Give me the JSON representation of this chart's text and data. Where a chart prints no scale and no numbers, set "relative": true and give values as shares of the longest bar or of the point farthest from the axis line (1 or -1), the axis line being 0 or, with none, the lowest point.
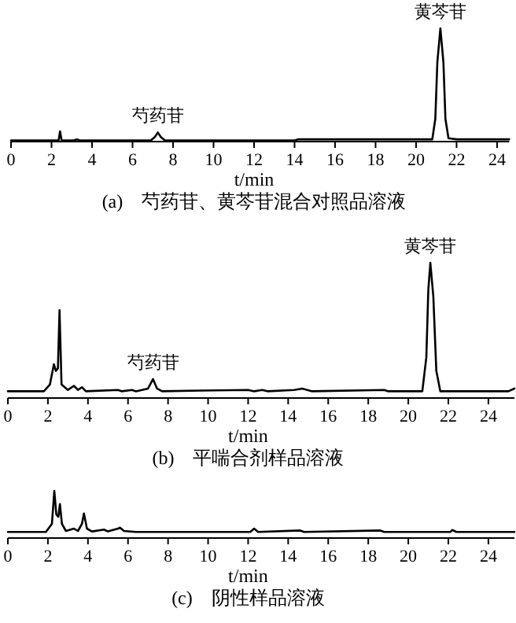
{
  "chart_data": [
    {
      "type": "line",
      "relative": true,
      "title": "(a)　芍药苷、黄芩苷混合对照品溶液",
      "xlabel": "t/min",
      "xlim": [
        0,
        24.6
      ],
      "xticks": [
        0,
        2,
        4,
        6,
        8,
        10,
        12,
        14,
        16,
        18,
        20,
        22,
        24
      ],
      "tick_labels": "x",
      "grid": false,
      "marker": "none",
      "line_style": "solid",
      "annotations": [
        {
          "text": "芍药苷",
          "x": 7.25,
          "y": 0.08
        },
        {
          "text": "黄芩苷",
          "x": 21.2,
          "y": 1
        }
      ],
      "series": [
        {
          "color": "#000000",
          "x": [
            0,
            2.2,
            2.35,
            2.42,
            2.5,
            3.1,
            3.25,
            3.4,
            6.9,
            7.1,
            7.25,
            7.4,
            7.6,
            14.0,
            14.2,
            20.8,
            20.95,
            21.05,
            21.2,
            21.35,
            21.45,
            21.6,
            22,
            24.6
          ],
          "values": [
            0.01,
            0.01,
            0.01,
            0.09,
            0.01,
            0.01,
            0.02,
            0.01,
            0.01,
            0.04,
            0.08,
            0.04,
            0.01,
            0.01,
            0.02,
            0.02,
            0.2,
            0.7,
            1,
            0.7,
            0.2,
            0.03,
            0.02,
            0.02
          ]
        }
      ]
    },
    {
      "type": "line",
      "relative": true,
      "title": "(b)　平喘合剂样品溶液",
      "xlabel": "t/min",
      "xlim": [
        0,
        25.3
      ],
      "xticks": [
        0,
        2,
        4,
        6,
        8,
        10,
        12,
        14,
        16,
        18,
        20,
        22,
        24
      ],
      "tick_labels": "x",
      "grid": false,
      "marker": "none",
      "line_style": "solid",
      "annotations": [
        {
          "text": "芍药苷",
          "x": 7.25,
          "y": 0.14
        },
        {
          "text": "黄芩苷",
          "x": 21.1,
          "y": 1
        }
      ],
      "series": [
        {
          "color": "#000000",
          "x": [
            0,
            1.8,
            2.1,
            2.3,
            2.4,
            2.5,
            2.58,
            2.68,
            3.0,
            3.3,
            3.5,
            3.7,
            3.9,
            5.5,
            5.7,
            6.2,
            6.4,
            7.0,
            7.25,
            7.45,
            7.7,
            9.7,
            12.0,
            12.3,
            12.7,
            13,
            14.3,
            14.7,
            15.2,
            18.8,
            19,
            20.7,
            20.9,
            21.0,
            21.1,
            21.25,
            21.4,
            21.6,
            25,
            25.3
          ],
          "values": [
            0.05,
            0.05,
            0.1,
            0.25,
            0.2,
            0.22,
            0.65,
            0.1,
            0.06,
            0.09,
            0.06,
            0.08,
            0.05,
            0.06,
            0.05,
            0.06,
            0.05,
            0.07,
            0.14,
            0.07,
            0.05,
            0.055,
            0.06,
            0.05,
            0.06,
            0.05,
            0.06,
            0.07,
            0.05,
            0.06,
            0.05,
            0.05,
            0.3,
            0.8,
            1,
            0.75,
            0.2,
            0.05,
            0.05,
            0.07
          ]
        }
      ]
    },
    {
      "type": "line",
      "relative": true,
      "title": "(c)　阴性样品溶液",
      "xlabel": "t/min",
      "xlim": [
        0,
        25.3
      ],
      "xticks": [
        0,
        2,
        4,
        6,
        8,
        10,
        12,
        14,
        16,
        18,
        20,
        22,
        24
      ],
      "tick_labels": "x",
      "grid": false,
      "marker": "none",
      "line_style": "solid",
      "series": [
        {
          "color": "#000000",
          "x": [
            0,
            1.9,
            2.2,
            2.32,
            2.42,
            2.52,
            2.6,
            2.7,
            2.9,
            3.3,
            3.5,
            3.7,
            3.8,
            3.95,
            4.2,
            4.8,
            5.0,
            5.5,
            5.6,
            5.8,
            6.4,
            12.1,
            12.3,
            12.5,
            14.6,
            14.8,
            18.6,
            18.8,
            22.1,
            22.2,
            22.4,
            25.3
          ],
          "values": [
            0.13,
            0.13,
            0.3,
            1,
            0.5,
            0.45,
            0.72,
            0.3,
            0.15,
            0.2,
            0.15,
            0.3,
            0.52,
            0.2,
            0.14,
            0.18,
            0.14,
            0.2,
            0.22,
            0.15,
            0.13,
            0.13,
            0.2,
            0.13,
            0.16,
            0.13,
            0.16,
            0.13,
            0.13,
            0.17,
            0.13,
            0.13
          ]
        }
      ]
    }
  ]
}
